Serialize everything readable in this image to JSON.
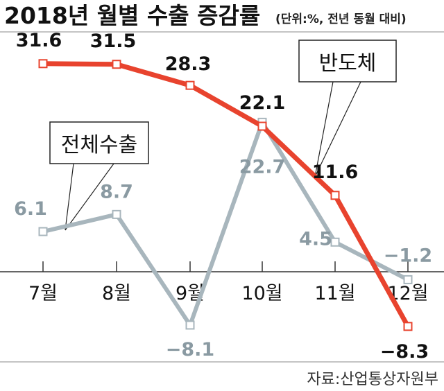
{
  "title": "2018년 월별 수출 증감률",
  "unit_note": "(단위:%, 전년 동월 대비)",
  "source": "자료:산업통상자원부",
  "chart_data": {
    "type": "line",
    "categories": [
      "7월",
      "8월",
      "9월",
      "10월",
      "11월",
      "12월"
    ],
    "series": [
      {
        "name": "반도체",
        "color": "#e8432e",
        "values": [
          31.6,
          31.5,
          28.3,
          22.1,
          11.6,
          -8.3
        ],
        "labels": [
          "31.6",
          "31.5",
          "28.3",
          "22.1",
          "11.6",
          "−8.3"
        ]
      },
      {
        "name": "전체수출",
        "color": "#a8b6bd",
        "values": [
          6.1,
          8.7,
          -8.1,
          22.7,
          4.5,
          -1.2
        ],
        "labels": [
          "6.1",
          "8.7",
          "−8.1",
          "22.7",
          "4.5",
          "−1.2"
        ]
      }
    ],
    "ylim": [
      -10,
      35
    ],
    "grid": false,
    "zero_line": true
  }
}
